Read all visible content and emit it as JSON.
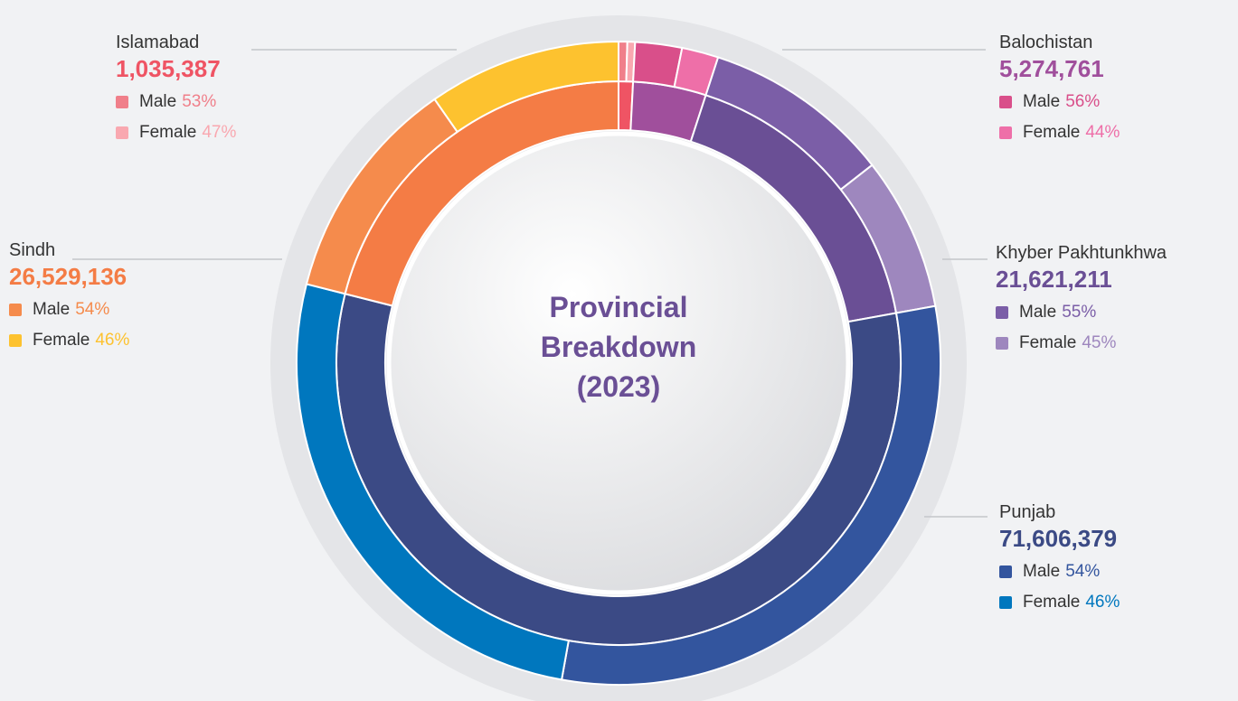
{
  "chart_data": {
    "type": "nested-donut",
    "title": "Provincial Breakdown (2023)",
    "categories": [
      "Islamabad",
      "Balochistan",
      "Khyber Pakhtunkhwa",
      "Punjab",
      "Sindh"
    ],
    "values": [
      1035387,
      5274761,
      21621211,
      71606379,
      26529136
    ],
    "value_labels": [
      "1,035,387",
      "5,274,761",
      "21,621,211",
      "71,606,379",
      "26,529,136"
    ],
    "colors": [
      "#ef5464",
      "#a04f9c",
      "#6a4f95",
      "#3b4a85",
      "#f47c45"
    ],
    "breakdown": [
      {
        "name": "Male",
        "values": [
          53,
          56,
          55,
          54,
          54
        ],
        "value_labels": [
          "53%",
          "56%",
          "55%",
          "54%",
          "54%"
        ],
        "colors": [
          "#f07f8a",
          "#d94f8a",
          "#7b5ea7",
          "#33559e",
          "#f58b4c"
        ]
      },
      {
        "name": "Female",
        "values": [
          47,
          44,
          45,
          46,
          46
        ],
        "value_labels": [
          "47%",
          "44%",
          "45%",
          "46%",
          "46%"
        ],
        "colors": [
          "#f9a8b0",
          "#ee6fa8",
          "#9e87be",
          "#0077be",
          "#fdc22f"
        ]
      }
    ]
  }
}
